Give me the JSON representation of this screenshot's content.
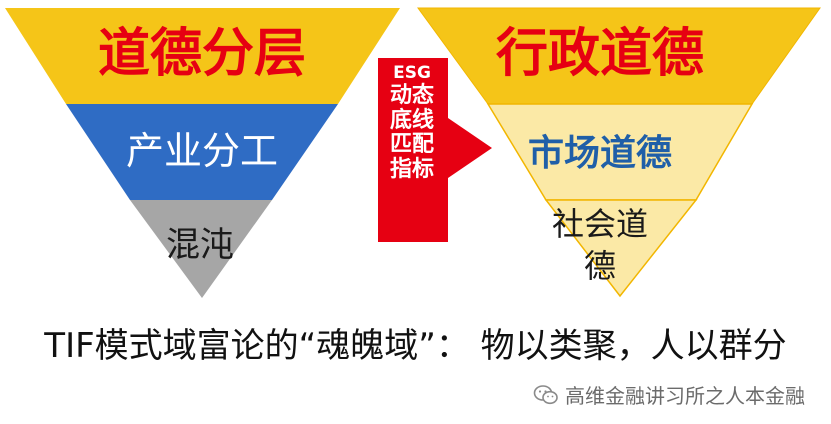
{
  "left_pyramid": {
    "top_label": "道德分层",
    "middle_label": "产业分工",
    "bottom_label": "混沌"
  },
  "arrow": {
    "lines": [
      "ESG",
      "动态",
      "底线",
      "匹配",
      "指标"
    ]
  },
  "right_pyramid": {
    "top_label": "行政道德",
    "middle_label": "市场道德",
    "bottom_label_line1": "社会道",
    "bottom_label_line2": "德"
  },
  "caption": "TIF模式域富论的“魂魄域”： 物以类聚，人以群分",
  "watermark": "高维金融讲习所之人本金融",
  "colors": {
    "yellow": "#f5c518",
    "blue": "#2f6cc4",
    "gray": "#a6a6a6",
    "pale_yellow": "#fbe9a6",
    "red": "#e60012",
    "dark_blue_text": "#1f5fa8"
  }
}
